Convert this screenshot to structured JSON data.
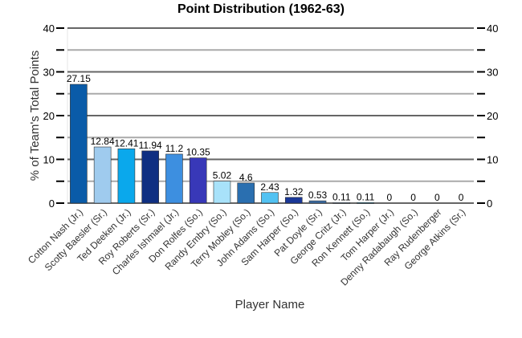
{
  "chart_data": {
    "type": "bar",
    "title": "Point Distribution (1962-63)",
    "xlabel": "Player Name",
    "ylabel": "% of Team's Total Points",
    "ylim": [
      0,
      40
    ],
    "yticks": [
      0,
      10,
      20,
      30,
      40
    ],
    "grid": true,
    "categories": [
      "Cotton Nash (Jr.)",
      "Scotty Baesler (Sr.)",
      "Ted Deeken (Jr.)",
      "Roy Roberts (Sr.)",
      "Charles Ishmael (Jr.)",
      "Don Rolfes (So.)",
      "Randy Embry (So.)",
      "Terry Mobley (So.)",
      "John Adams (So.)",
      "Sam Harper (So.)",
      "Pat Doyle (Sr.)",
      "George Critz (Jr.)",
      "Ron Kennett (So.)",
      "Tom Harper (Jr.)",
      "Denny Radabaugh (So.)",
      "Ray Rudenberger",
      "George Atkins (Sr.)"
    ],
    "values": [
      27.15,
      12.84,
      12.41,
      11.94,
      11.2,
      10.35,
      5.02,
      4.6,
      2.43,
      1.32,
      0.53,
      0.11,
      0.11,
      0,
      0,
      0,
      0
    ],
    "colors": [
      "#0a5ba8",
      "#9fcbee",
      "#0aa8ec",
      "#0f2f82",
      "#3d8fe0",
      "#3838b8",
      "#a8e2fa",
      "#2a6fb0",
      "#52c2f2",
      "#1a3898",
      "#3a6ea8",
      "#6f8fb0",
      "#2080a8",
      "#4a8ad0",
      "#4a8ad0",
      "#4a8ad0",
      "#4a8ad0"
    ]
  }
}
